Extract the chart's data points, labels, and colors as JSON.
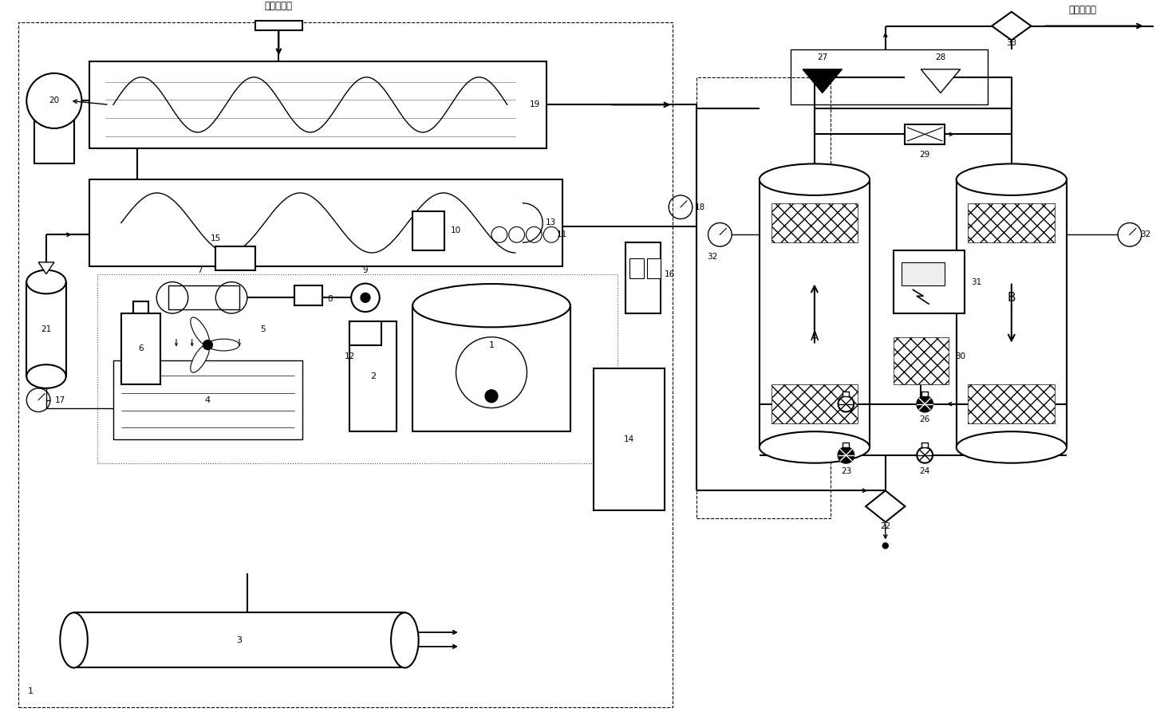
{
  "bg_color": "#ffffff",
  "line_color": "#000000",
  "label_wet": "湿空气入口",
  "label_dry": "干空气出口",
  "fig_width": 14.69,
  "fig_height": 9.08,
  "dpi": 100
}
